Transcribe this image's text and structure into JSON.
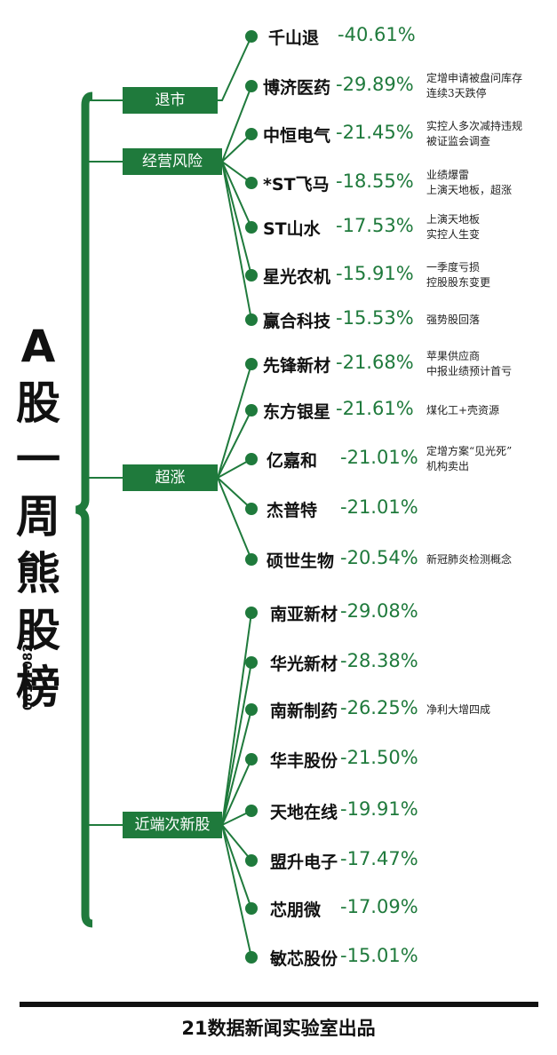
{
  "title_chars": [
    "A",
    "股",
    "一",
    "周",
    "熊",
    "股",
    "榜"
  ],
  "date_range": "0817–0821",
  "categories": [
    {
      "label": "退市"
    },
    {
      "label": "经营风险"
    },
    {
      "label": "超涨"
    },
    {
      "label": "近端次新股"
    }
  ],
  "stocks": [
    {
      "name": "千山退",
      "change": "-40.61%",
      "note": []
    },
    {
      "name": "博济医药",
      "change": "-29.89%",
      "note": [
        "定增申请被盘问库存",
        "连续3天跌停"
      ]
    },
    {
      "name": "中恒电气",
      "change": "-21.45%",
      "note": [
        "实控人多次减持违规",
        "被证监会调查"
      ]
    },
    {
      "name": "*ST飞马",
      "change": "-18.55%",
      "note": [
        "业绩爆雷",
        "上演天地板，超涨"
      ]
    },
    {
      "name": "ST山水",
      "change": "-17.53%",
      "note": [
        "上演天地板",
        "实控人生变"
      ]
    },
    {
      "name": "星光农机",
      "change": "-15.91%",
      "note": [
        "一季度亏损",
        "控股股东变更"
      ]
    },
    {
      "name": "赢合科技",
      "change": "-15.53%",
      "note": [
        "强势股回落"
      ]
    },
    {
      "name": "先锋新材",
      "change": "-21.68%",
      "note": [
        "苹果供应商",
        "中报业绩预计首亏"
      ]
    },
    {
      "name": "东方银星",
      "change": "-21.61%",
      "note": [
        "煤化工+壳资源"
      ]
    },
    {
      "name": "亿嘉和",
      "change": "-21.01%",
      "note": [
        "定增方案“见光死”",
        "机构卖出"
      ]
    },
    {
      "name": "杰普特",
      "change": "-21.01%",
      "note": []
    },
    {
      "name": "硕世生物",
      "change": "-20.54%",
      "note": [
        "新冠肺炎检测概念"
      ]
    },
    {
      "name": "南亚新材",
      "change": "-29.08%",
      "note": []
    },
    {
      "name": "华光新材",
      "change": "-28.38%",
      "note": []
    },
    {
      "name": "南新制药",
      "change": "-26.25%",
      "note": [
        "净利大增四成"
      ]
    },
    {
      "name": "华丰股份",
      "change": "-21.50%",
      "note": []
    },
    {
      "name": "天地在线",
      "change": "-19.91%",
      "note": []
    },
    {
      "name": "盟升电子",
      "change": "-17.47%",
      "note": []
    },
    {
      "name": "芯朋微",
      "change": "-17.09%",
      "note": []
    },
    {
      "name": "敏芯股份",
      "change": "-15.01%",
      "note": []
    }
  ],
  "footer": "21数据新闻实验室出品",
  "colors": {
    "accent": "#1f7a3c",
    "text": "#111111"
  }
}
